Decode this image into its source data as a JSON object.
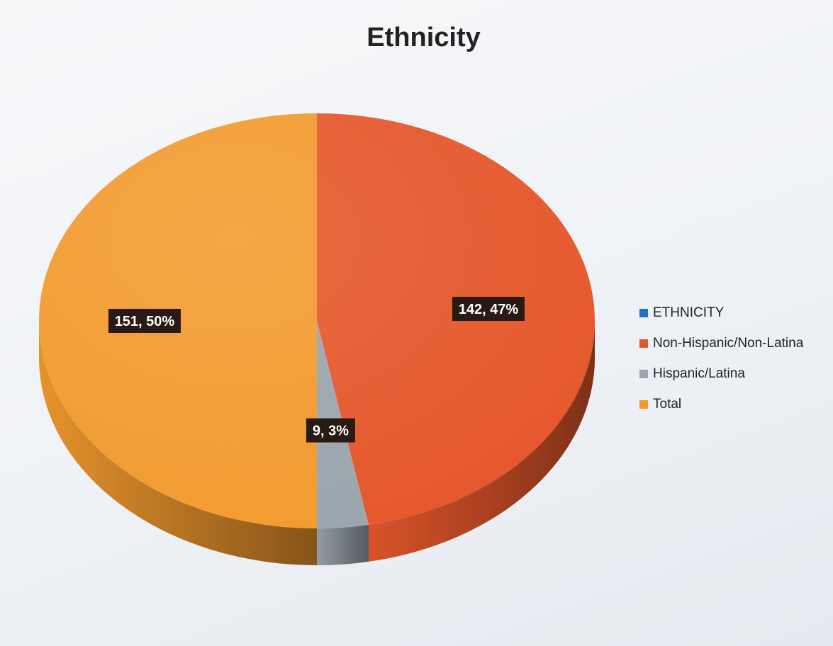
{
  "chart_data": {
    "type": "pie",
    "title": "Ethnicity",
    "categories": [
      "ETHNICITY",
      "Non-Hispanic/Non-Latina",
      "Hispanic/Latina",
      "Total"
    ],
    "values": [
      0,
      142,
      9,
      151
    ],
    "percentages": [
      0,
      47,
      3,
      50
    ],
    "data_labels": [
      "",
      "142, 47%",
      "9, 3%",
      "151, 50%"
    ],
    "colors": [
      "#1f73c6",
      "#e5572b",
      "#9aa5ad",
      "#f29a2e"
    ],
    "legend_position": "right",
    "style": "3d"
  }
}
